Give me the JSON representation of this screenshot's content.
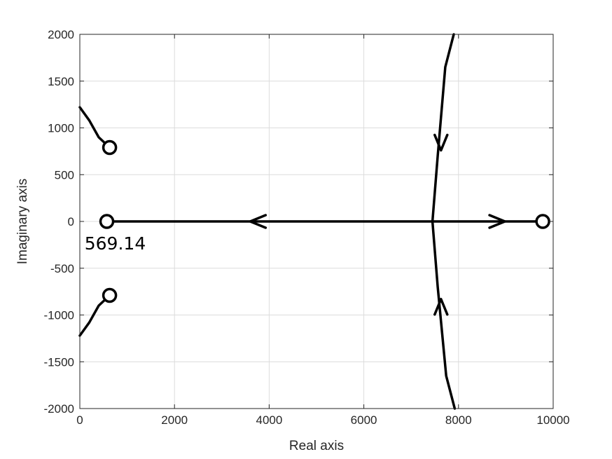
{
  "chart_data": {
    "type": "line",
    "title": "",
    "xlabel": "Real axis",
    "ylabel": "Imaginary axis",
    "xlim": [
      0,
      10000
    ],
    "ylim": [
      -2000,
      2000
    ],
    "x_ticks": [
      0,
      2000,
      4000,
      6000,
      8000,
      10000
    ],
    "y_ticks": [
      -2000,
      -1500,
      -1000,
      -500,
      0,
      500,
      1000,
      1500,
      2000
    ],
    "x_tick_labels": [
      "0",
      "2000",
      "4000",
      "6000",
      "8000",
      "10000"
    ],
    "y_tick_labels": [
      "-2000",
      "-1500",
      "-1000",
      "-500",
      "0",
      "500",
      "1000",
      "1500",
      "2000"
    ],
    "grid": true,
    "line_color": "#000000",
    "grid_color": "#dcdcdc",
    "annotations": [
      {
        "text": "569.14",
        "x": 100,
        "y": -300
      }
    ],
    "markers": [
      {
        "shape": "circle",
        "x": 630,
        "y": 790
      },
      {
        "shape": "circle",
        "x": 570,
        "y": 0
      },
      {
        "shape": "circle",
        "x": 630,
        "y": -790
      },
      {
        "shape": "circle",
        "x": 9780,
        "y": 0
      }
    ],
    "series": [
      {
        "points": [
          [
            0,
            1220
          ],
          [
            200,
            1080
          ],
          [
            400,
            900
          ],
          [
            630,
            790
          ]
        ]
      },
      {
        "points": [
          [
            0,
            -1220
          ],
          [
            200,
            -1080
          ],
          [
            400,
            -900
          ],
          [
            630,
            -790
          ]
        ]
      },
      {
        "points": [
          [
            570,
            0
          ],
          [
            9780,
            0
          ]
        ]
      },
      {
        "points": [
          [
            7900,
            2000
          ],
          [
            7720,
            1650
          ],
          [
            7560,
            700
          ],
          [
            7450,
            0
          ]
        ]
      },
      {
        "points": [
          [
            7920,
            -2000
          ],
          [
            7740,
            -1650
          ],
          [
            7560,
            -700
          ],
          [
            7450,
            0
          ]
        ]
      }
    ],
    "arrows": [
      {
        "x": 3600,
        "y": 0,
        "direction": "left"
      },
      {
        "x": 8980,
        "y": 0,
        "direction": "right"
      },
      {
        "x": 7630,
        "y": 760,
        "direction": "down"
      },
      {
        "x": 7630,
        "y": -830,
        "direction": "up"
      }
    ]
  }
}
